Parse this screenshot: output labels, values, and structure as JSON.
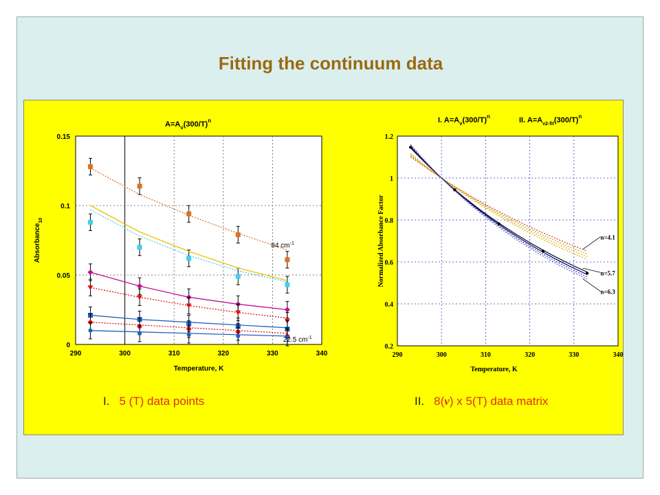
{
  "slide": {
    "title": "Fitting the continuum data",
    "caption_left": {
      "num": "I.",
      "text": "5 (T) data points"
    },
    "caption_right": {
      "num": "II.",
      "text_a": "8(",
      "nu": "ν",
      "text_b": ") x 5(T) data matrix"
    }
  },
  "chart_data": [
    {
      "type": "scatter",
      "title_main": "A=A",
      "title_sub": "ν",
      "title_tail": "(300/T)",
      "title_sup": "n",
      "xlabel": "Temperature, K",
      "ylabel_main": "Absorbance",
      "ylabel_sub": "10",
      "xlim": [
        290,
        340
      ],
      "ylim": [
        0,
        0.15
      ],
      "xticks": [
        "290",
        "300",
        "310",
        "320",
        "330",
        "340"
      ],
      "yticks": [
        "0",
        "0.05",
        "0.1",
        "0.15"
      ],
      "grid": true,
      "x": [
        293,
        303,
        313,
        323,
        333
      ],
      "series": [
        {
          "values": [
            0.128,
            0.114,
            0.094,
            0.079,
            0.061
          ],
          "color": "#e07020",
          "marker": "square",
          "fit": [
            0.127,
            0.108,
            0.093,
            0.08,
            0.068
          ],
          "fitcolor": "#e07020"
        },
        {
          "values": [
            0.088,
            0.07,
            0.062,
            0.049,
            0.043
          ],
          "color": "#40d0f0",
          "marker": "square",
          "fit": [
            0.097,
            0.078,
            0.064,
            0.053,
            0.045
          ],
          "fitcolor": "#40d0f0"
        },
        {
          "values": null,
          "color": "#f0c000",
          "marker": "none",
          "fit": [
            0.1,
            0.081,
            0.067,
            0.055,
            0.046
          ],
          "fitcolor": "#f0c000"
        },
        {
          "values": [
            0.052,
            0.042,
            0.034,
            0.029,
            0.025
          ],
          "color": "#c01090",
          "marker": "diamond",
          "fit": [
            0.052,
            0.042,
            0.034,
            0.029,
            0.025
          ],
          "fitcolor": "#c01090"
        },
        {
          "values": [
            0.041,
            0.034,
            0.028,
            0.023,
            0.017
          ],
          "color": "#e01010",
          "marker": "triangle",
          "fit": [
            0.041,
            0.034,
            0.028,
            0.023,
            0.019
          ],
          "fitcolor": "#e01010"
        },
        {
          "values": [
            0.021,
            0.018,
            0.015,
            0.013,
            0.011
          ],
          "color": "#2060c0",
          "marker": "square",
          "fit": [
            0.021,
            0.018,
            0.016,
            0.014,
            0.012
          ],
          "fitcolor": "#2060c0"
        },
        {
          "values": [
            0.016,
            0.013,
            0.011,
            0.009,
            0.006
          ],
          "color": "#e01010",
          "marker": "diamond",
          "fit": [
            0.016,
            0.014,
            0.012,
            0.01,
            0.008
          ],
          "fitcolor": "#e01010"
        },
        {
          "values": [
            0.01,
            0.008,
            0.007,
            0.006,
            0.005
          ],
          "color": "#2060c0",
          "marker": "circle",
          "fit": [
            0.01,
            0.009,
            0.008,
            0.007,
            0.006
          ],
          "fitcolor": "#2060c0"
        }
      ],
      "errorbar": 0.006,
      "vline_x": 300,
      "annotations": [
        {
          "text": "84 cm",
          "sup": "-1",
          "x": 330,
          "y": 0.061
        },
        {
          "text": "22.5 cm",
          "sup": "-1",
          "x": 333,
          "y": 0.003
        }
      ]
    },
    {
      "type": "line",
      "title_I_a": "I. A=A",
      "title_I_sub": "ν",
      "title_I_b": "(300/T)",
      "title_I_sup": "n",
      "title_II_a": "II. A=A",
      "title_II_sub": "ν2-fit",
      "title_II_b": "(300/T)",
      "title_II_sup": "n",
      "xlabel": "Temperature, K",
      "ylabel": "Normalized Absorbance Factor",
      "xlim": [
        290,
        340
      ],
      "ylim": [
        0.2,
        1.2
      ],
      "xticks": [
        "290",
        "300",
        "310",
        "320",
        "330",
        "340"
      ],
      "yticks": [
        "0.2",
        "0.4",
        "0.6",
        "0.8",
        "1",
        "1.2"
      ],
      "grid": true,
      "x": [
        293,
        298,
        303,
        308,
        313,
        318,
        323,
        328,
        333
      ],
      "curves": [
        {
          "n": 4.1,
          "color": "#d03030",
          "dash": true
        },
        {
          "n": 4.3,
          "color": "#d0a000",
          "dash": true
        },
        {
          "n": 4.5,
          "color": "#c0c000",
          "dash": true
        },
        {
          "n": 4.7,
          "color": "#f0a000",
          "dash": true
        },
        {
          "n": 5.7,
          "color": "#000000",
          "dash": false
        },
        {
          "n": 5.9,
          "color": "#000080",
          "dash": false
        },
        {
          "n": 6.1,
          "color": "#3030c0",
          "dash": true
        },
        {
          "n": 6.3,
          "color": "#6060a0",
          "dash": true
        }
      ],
      "points_x": [
        293,
        303,
        313,
        323,
        333
      ],
      "labels": [
        {
          "text": "n=4.1",
          "x": 336,
          "y": 0.72
        },
        {
          "text": "n=5.7",
          "x": 336,
          "y": 0.55
        },
        {
          "text": "n=6.3",
          "x": 336,
          "y": 0.46
        }
      ]
    }
  ]
}
